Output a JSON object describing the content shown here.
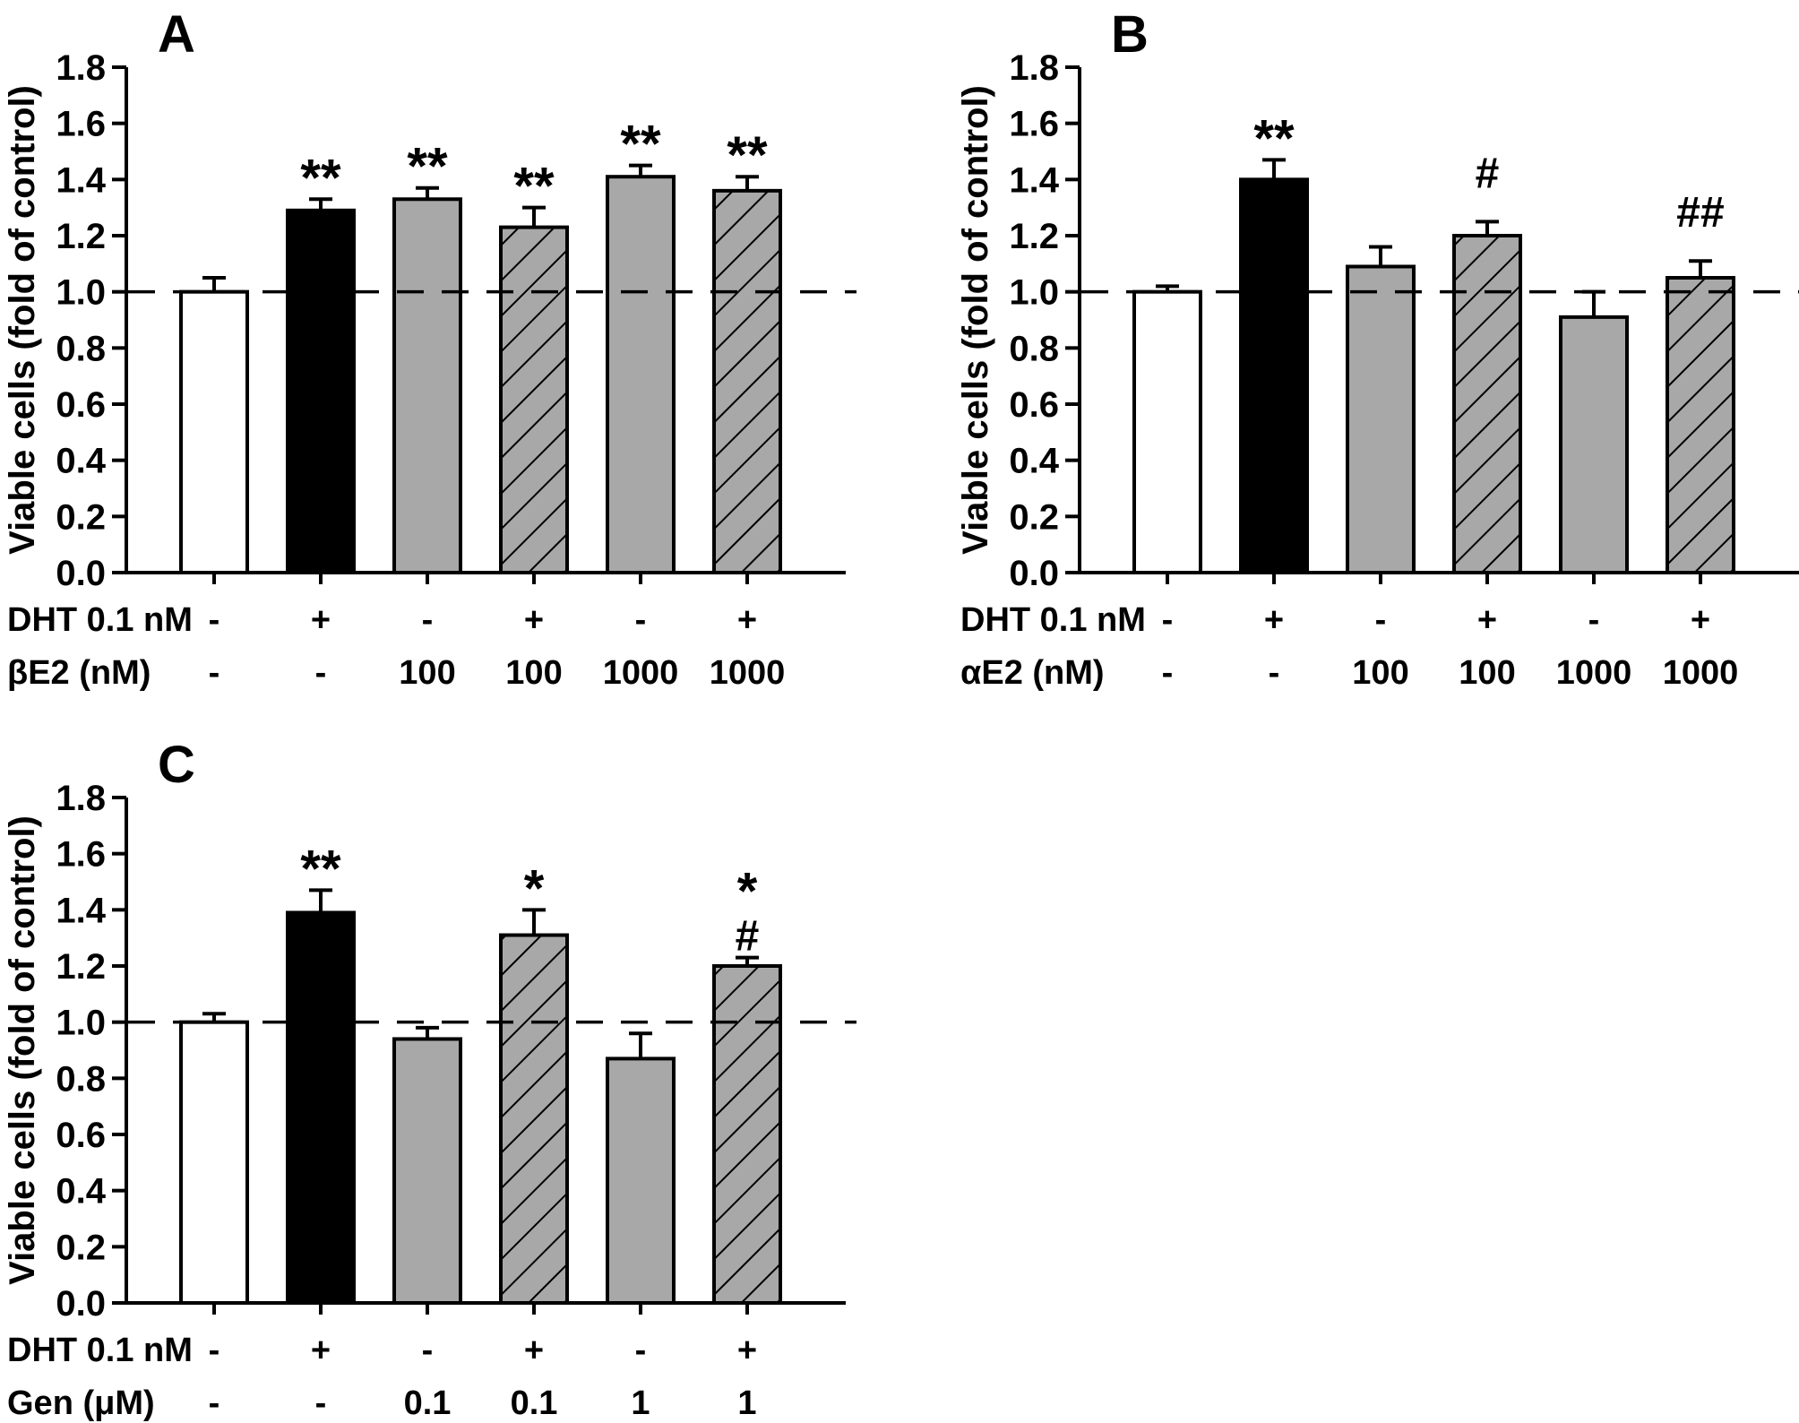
{
  "figure": {
    "background": "#ffffff",
    "ink_color": "#000000",
    "bar_gray": "#a8a8a8",
    "bar_white": "#ffffff",
    "bar_black": "#000000"
  },
  "chart_data": [
    {
      "panel": "A",
      "type": "bar",
      "title": "A",
      "ylabel": "Viable cells (fold of control)",
      "ylim": [
        0.0,
        1.8
      ],
      "y_tick_step": 0.2,
      "y_tick_labels": [
        "0.0",
        "0.2",
        "0.4",
        "0.6",
        "0.8",
        "1.0",
        "1.2",
        "1.4",
        "1.6",
        "1.8"
      ],
      "reference_line": 1.0,
      "reference_line_style": "dashed",
      "grid": "off",
      "legend": "none",
      "bar_styles": [
        "white",
        "black",
        "gray",
        "gray-hatched",
        "gray",
        "gray-hatched"
      ],
      "values": [
        1.0,
        1.29,
        1.33,
        1.23,
        1.41,
        1.36
      ],
      "errors": [
        0.05,
        0.04,
        0.04,
        0.07,
        0.04,
        0.05
      ],
      "sig_markers": [
        "",
        "**",
        "**",
        "**",
        "**",
        "**"
      ],
      "x_rows": [
        {
          "label": "DHT 0.1 nM",
          "values": [
            "-",
            "+",
            "-",
            "+",
            "-",
            "+"
          ]
        },
        {
          "label": "βE2 (nM)",
          "values": [
            "-",
            "-",
            "100",
            "100",
            "1000",
            "1000"
          ]
        }
      ]
    },
    {
      "panel": "B",
      "type": "bar",
      "title": "B",
      "ylabel": "Viable cells (fold of control)",
      "ylim": [
        0.0,
        1.8
      ],
      "y_tick_step": 0.2,
      "y_tick_labels": [
        "0.0",
        "0.2",
        "0.4",
        "0.6",
        "0.8",
        "1.0",
        "1.2",
        "1.4",
        "1.6",
        "1.8"
      ],
      "reference_line": 1.0,
      "reference_line_style": "dashed",
      "grid": "off",
      "legend": "none",
      "bar_styles": [
        "white",
        "black",
        "gray",
        "gray-hatched",
        "gray",
        "gray-hatched"
      ],
      "values": [
        1.0,
        1.4,
        1.09,
        1.2,
        0.91,
        1.05
      ],
      "errors": [
        0.02,
        0.07,
        0.07,
        0.05,
        0.09,
        0.06
      ],
      "sig_markers": [
        "",
        "**",
        "",
        "#",
        "",
        "##"
      ],
      "x_rows": [
        {
          "label": "DHT 0.1 nM",
          "values": [
            "-",
            "+",
            "-",
            "+",
            "-",
            "+"
          ]
        },
        {
          "label": "αE2 (nM)",
          "values": [
            "-",
            "-",
            "100",
            "100",
            "1000",
            "1000"
          ]
        }
      ]
    },
    {
      "panel": "C",
      "type": "bar",
      "title": "C",
      "ylabel": "Viable cells (fold of control)",
      "ylim": [
        0.0,
        1.8
      ],
      "y_tick_step": 0.2,
      "y_tick_labels": [
        "0.0",
        "0.2",
        "0.4",
        "0.6",
        "0.8",
        "1.0",
        "1.2",
        "1.4",
        "1.6",
        "1.8"
      ],
      "reference_line": 1.0,
      "reference_line_style": "dashed",
      "grid": "off",
      "legend": "none",
      "bar_styles": [
        "white",
        "black",
        "gray",
        "gray-hatched",
        "gray",
        "gray-hatched"
      ],
      "values": [
        1.0,
        1.39,
        0.94,
        1.31,
        0.87,
        1.2
      ],
      "errors": [
        0.03,
        0.08,
        0.04,
        0.09,
        0.09,
        0.03
      ],
      "sig_markers": [
        "",
        "**",
        "",
        "*",
        "",
        [
          "*",
          "#"
        ]
      ],
      "x_rows": [
        {
          "label": "DHT 0.1 nM",
          "values": [
            "-",
            "+",
            "-",
            "+",
            "-",
            "+"
          ]
        },
        {
          "label": "Gen (μM)",
          "values": [
            "-",
            "-",
            "0.1",
            "0.1",
            "1",
            "1"
          ]
        }
      ]
    }
  ]
}
